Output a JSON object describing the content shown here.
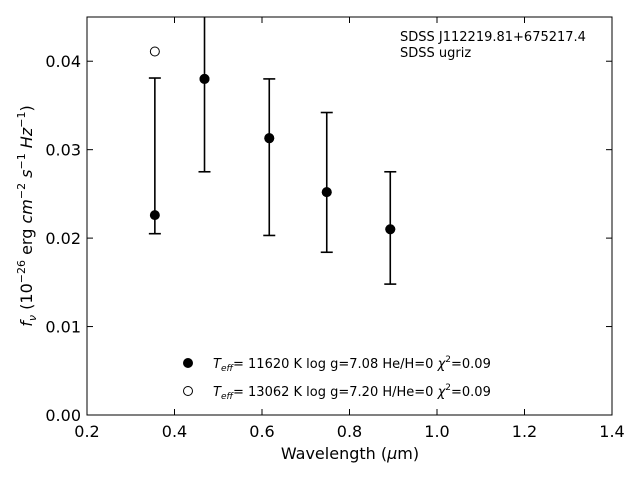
{
  "chart_data": {
    "type": "scatter",
    "title": "",
    "xlabel": "Wavelength (μm)",
    "ylabel": "f_ν (10⁻²⁶ erg cm⁻² s⁻¹ Hz⁻¹)",
    "xlim": [
      0.2,
      1.4
    ],
    "ylim": [
      0.0,
      0.045
    ],
    "x_ticks": [
      0.2,
      0.4,
      0.6,
      0.8,
      1.0,
      1.2,
      1.4
    ],
    "x_tick_labels": [
      "0.2",
      "0.4",
      "0.6",
      "0.8",
      "1.0",
      "1.2",
      "1.4"
    ],
    "y_ticks": [
      0.0,
      0.01,
      0.02,
      0.03,
      0.04
    ],
    "y_tick_labels": [
      "0.00",
      "0.01",
      "0.02",
      "0.03",
      "0.04"
    ],
    "grid": false,
    "annotation_lines": [
      "SDSS J112219.81+675217.4",
      "SDSS ugriz"
    ],
    "observed": {
      "x": [
        0.3551,
        0.4686,
        0.6166,
        0.748,
        0.8932
      ],
      "y": [
        0.0226,
        0.038,
        0.0313,
        0.0252,
        0.021
      ],
      "y_low": [
        0.0205,
        0.0275,
        0.0203,
        0.0184,
        0.0148
      ],
      "y_high": [
        0.0381,
        0.045,
        0.038,
        0.0342,
        0.0275
      ]
    },
    "series": [
      {
        "name": "T_eff= 11620 K  log g=7.08  He/H=0  χ²=0.09",
        "marker": "filled-circle",
        "x": [
          0.4686,
          0.6166,
          0.748,
          0.8932
        ],
        "y": [
          0.038,
          0.0313,
          0.0252,
          0.021
        ]
      },
      {
        "name": "T_eff= 13062 K  log g=7.20  H/He=0  χ²=0.09",
        "marker": "open-circle",
        "x": [
          0.3551
        ],
        "y": [
          0.0411
        ]
      }
    ],
    "legend_position": "bottom-center",
    "legend": [
      {
        "t": "T",
        "sub": "eff",
        "rest": "= 11620 K  log g=7.08  He/H=0  ",
        "chi": "χ",
        "sup": "2",
        "tail": "=0.09"
      },
      {
        "t": "T",
        "sub": "eff",
        "rest": "= 13062 K  log g=7.20  H/He=0  ",
        "chi": "χ",
        "sup": "2",
        "tail": "=0.09"
      }
    ],
    "ylabel_parts": {
      "f": "f",
      "nu": "ν",
      "open": " (10",
      "e1": "−26",
      "mid1": " erg ",
      "cm": "cm",
      "e2": "−2",
      "s": " s",
      "e3": "−1",
      "hz": " Hz",
      "e4": "−1",
      "close": ")"
    },
    "xlabel_parts": {
      "text": "Wavelength (",
      "mu": "μ",
      "unit": "m)"
    }
  }
}
